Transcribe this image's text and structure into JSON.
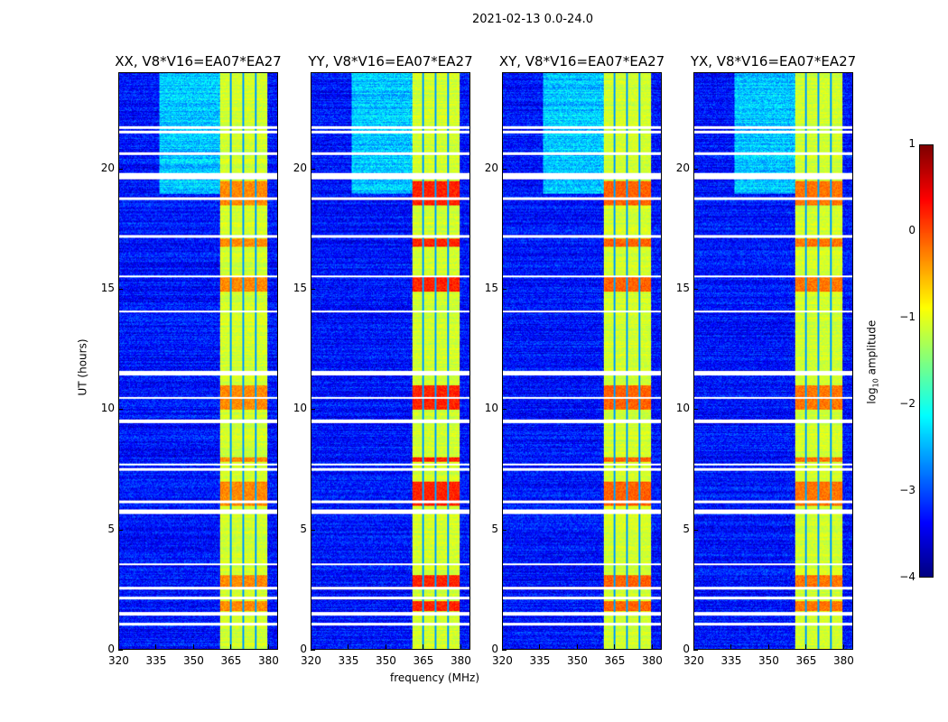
{
  "chart_data": {
    "type": "heatmap",
    "suptitle": "2021-02-13 0.0-24.0",
    "xlabel": "frequency (MHz)",
    "ylabel": "UT (hours)",
    "xlim": [
      320,
      384
    ],
    "ylim": [
      0,
      24
    ],
    "xticks": [
      "320",
      "335",
      "350",
      "365",
      "380"
    ],
    "xtick_values": [
      320,
      335,
      350,
      365,
      380
    ],
    "yticks": [
      "0",
      "5",
      "10",
      "15",
      "20"
    ],
    "ytick_values": [
      0,
      5,
      10,
      15,
      20
    ],
    "colorbar": {
      "label": "log10 amplitude",
      "label_main": "log",
      "label_sub": "10",
      "label_tail": " amplitude",
      "range": [
        -4,
        1
      ],
      "ticks": [
        "−4",
        "−3",
        "−2",
        "−1",
        "0",
        "1"
      ],
      "tick_values": [
        -4,
        -3,
        -2,
        -1,
        0,
        1
      ],
      "colormap": "jet"
    },
    "bright_band_mhz": [
      360.5,
      380
    ],
    "dark_channels_mhz": [
      365,
      370,
      375
    ],
    "flagged_hours": [
      [
        21.5,
        21.6
      ],
      [
        21.7,
        21.8
      ],
      [
        20.6,
        20.7
      ],
      [
        19.6,
        19.85
      ],
      [
        18.75,
        18.85
      ],
      [
        17.15,
        17.25
      ],
      [
        15.5,
        15.6
      ],
      [
        14.05,
        14.12
      ],
      [
        11.4,
        11.6
      ],
      [
        10.45,
        10.52
      ],
      [
        9.45,
        9.6
      ],
      [
        7.65,
        7.75
      ],
      [
        7.45,
        7.55
      ],
      [
        6.1,
        6.2
      ],
      [
        5.65,
        5.85
      ],
      [
        3.5,
        3.6
      ],
      [
        2.5,
        2.6
      ],
      [
        2.1,
        2.2
      ],
      [
        1.4,
        1.55
      ],
      [
        1.0,
        1.1
      ]
    ],
    "hot_hours": [
      [
        18.5,
        19.5
      ],
      [
        16.8,
        17.1
      ],
      [
        14.9,
        15.5
      ],
      [
        10.0,
        11.0
      ],
      [
        7.8,
        8.0
      ],
      [
        6.0,
        7.0
      ],
      [
        2.6,
        3.1
      ],
      [
        1.6,
        2.0
      ]
    ],
    "panels": [
      {
        "title": "XX, V8*V16=EA07*EA27",
        "hot_level": -0.3
      },
      {
        "title": "YY, V8*V16=EA07*EA27",
        "hot_level": 0.2
      },
      {
        "title": "XY, V8*V16=EA07*EA27",
        "hot_level": -0.1
      },
      {
        "title": "YX, V8*V16=EA07*EA27",
        "hot_level": -0.2
      }
    ]
  }
}
